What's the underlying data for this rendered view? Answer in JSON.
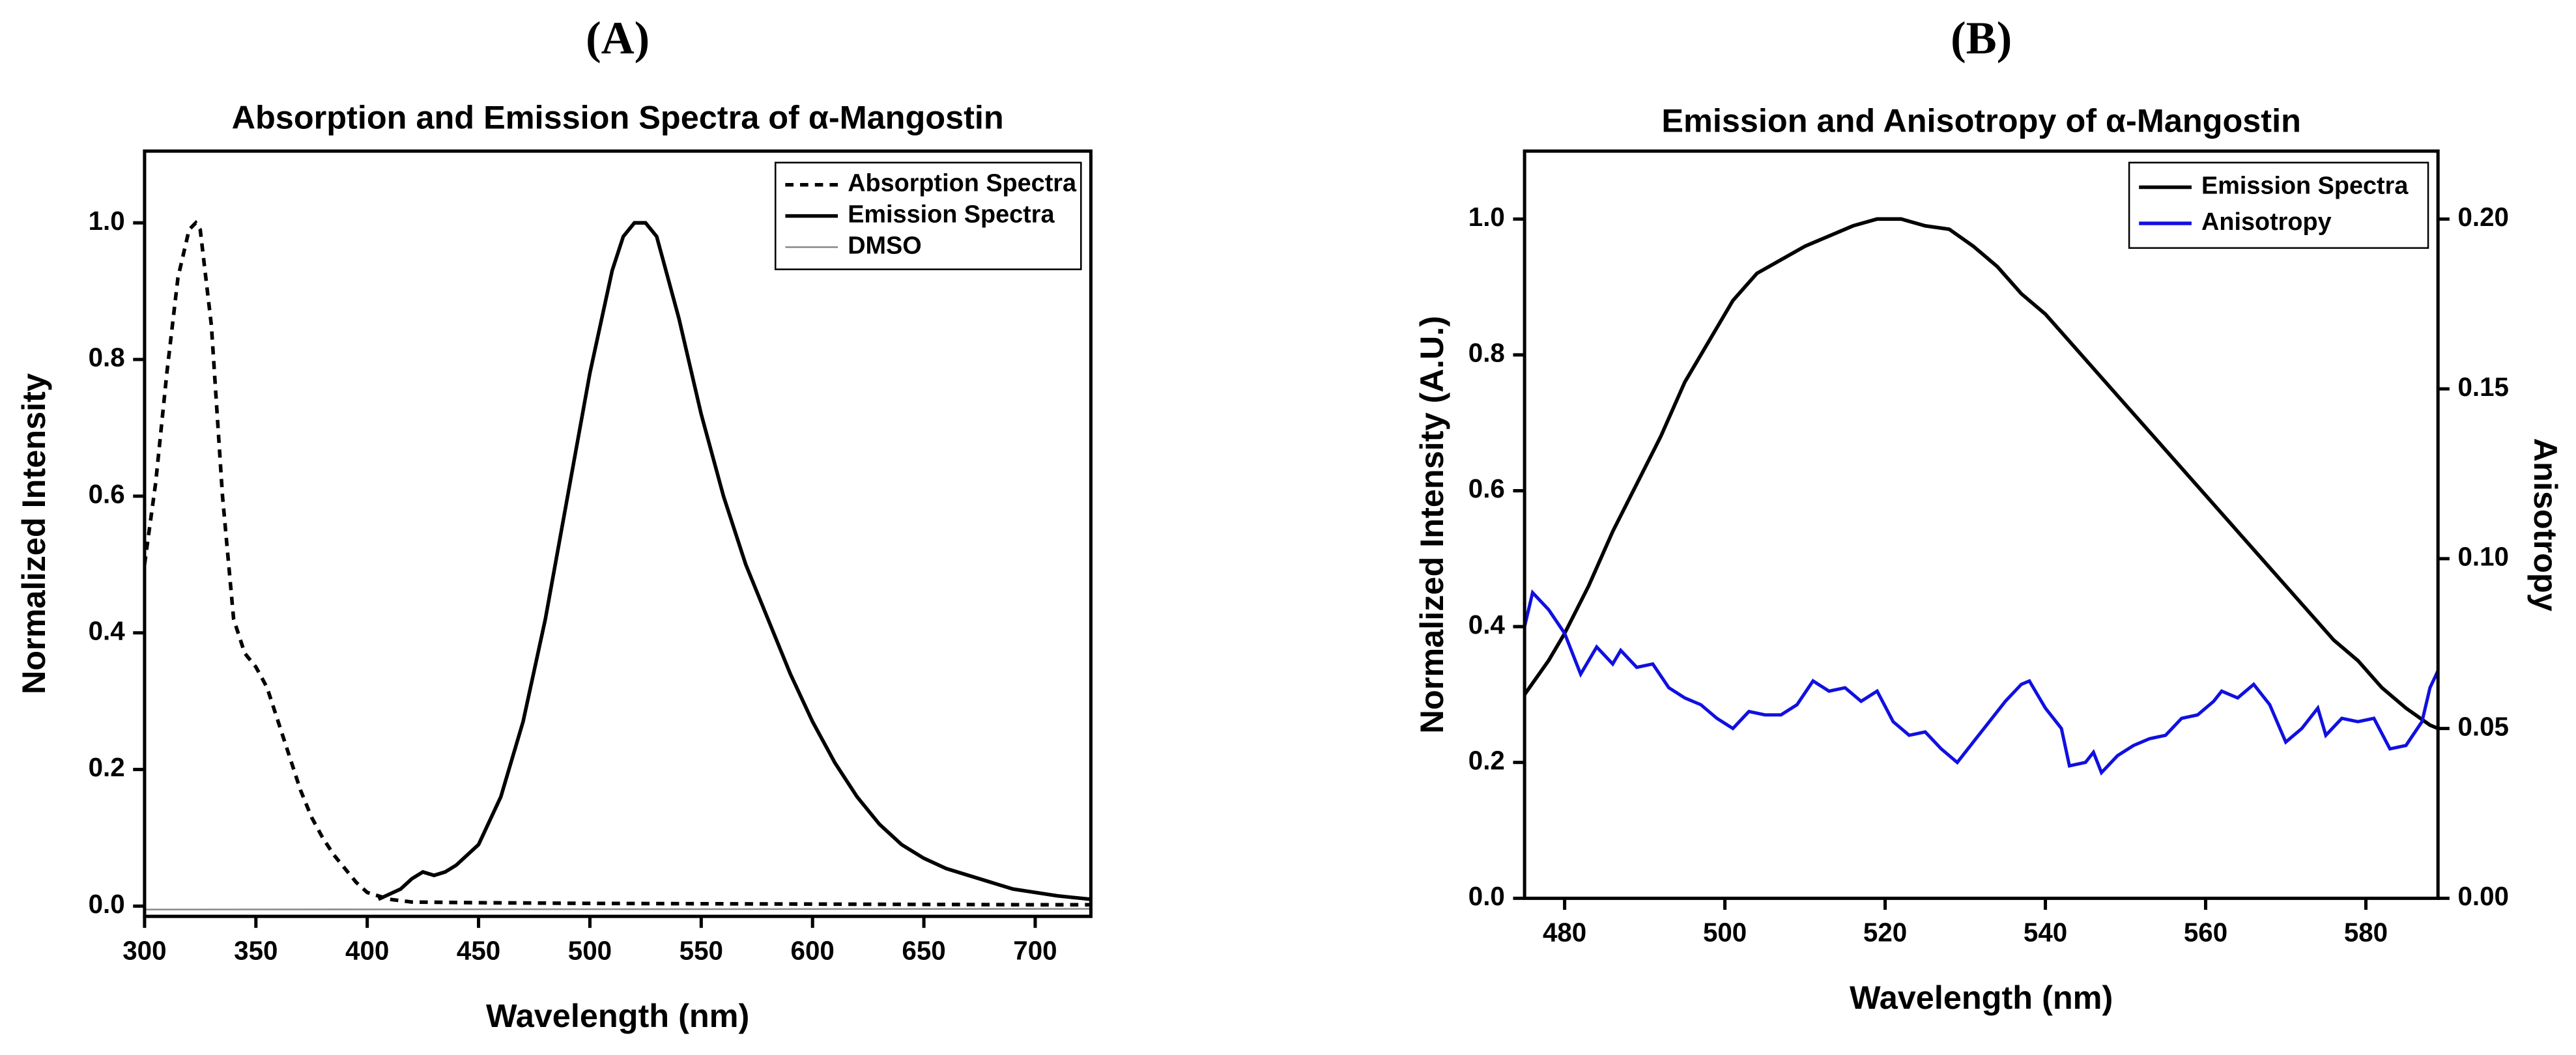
{
  "chart_data": [
    {
      "type": "line",
      "panel_label": "(A)",
      "title": "Absorption and Emission Spectra of α-Mangostin",
      "x_label": "Wavelength (nm)",
      "y_label": "Normalized Intensity",
      "xlim": [
        300,
        725
      ],
      "ylim": [
        -0.015,
        1.105
      ],
      "xticks": [
        300,
        350,
        400,
        450,
        500,
        550,
        600,
        650,
        700
      ],
      "yticks": [
        {
          "value": 0,
          "label": "0.0"
        },
        0.2,
        0.4,
        0.6,
        0.8,
        {
          "value": 1,
          "label": "1.0"
        }
      ],
      "legend": "upper right",
      "series": [
        {
          "name": "Absorption Spectra",
          "color": "#000000",
          "dash": "dashed",
          "x": [
            300,
            305,
            310,
            315,
            320,
            323,
            325,
            330,
            335,
            340,
            345,
            350,
            355,
            360,
            365,
            370,
            375,
            380,
            385,
            390,
            395,
            400,
            410,
            420,
            450,
            500,
            600,
            700,
            725
          ],
          "values": [
            0.5,
            0.62,
            0.78,
            0.92,
            0.99,
            1.0,
            0.99,
            0.85,
            0.6,
            0.42,
            0.37,
            0.35,
            0.32,
            0.27,
            0.22,
            0.17,
            0.13,
            0.1,
            0.075,
            0.055,
            0.035,
            0.02,
            0.01,
            0.006,
            0.005,
            0.004,
            0.003,
            0.002,
            0.002
          ]
        },
        {
          "name": "Emission Spectra",
          "color": "#000000",
          "dash": "solid",
          "x": [
            405,
            415,
            420,
            425,
            430,
            435,
            440,
            450,
            460,
            470,
            480,
            490,
            500,
            510,
            515,
            520,
            525,
            530,
            540,
            550,
            560,
            570,
            580,
            590,
            600,
            610,
            620,
            630,
            640,
            650,
            660,
            670,
            680,
            690,
            700,
            710,
            725
          ],
          "values": [
            0.01,
            0.025,
            0.04,
            0.05,
            0.045,
            0.05,
            0.06,
            0.09,
            0.16,
            0.27,
            0.42,
            0.6,
            0.78,
            0.93,
            0.98,
            1.0,
            1.0,
            0.98,
            0.86,
            0.72,
            0.6,
            0.5,
            0.42,
            0.34,
            0.27,
            0.21,
            0.16,
            0.12,
            0.09,
            0.07,
            0.055,
            0.045,
            0.035,
            0.025,
            0.02,
            0.015,
            0.01
          ]
        },
        {
          "name": "DMSO",
          "color": "#888888",
          "dash": "solid",
          "x": [
            300,
            725
          ],
          "values": [
            -0.005,
            -0.004
          ]
        }
      ]
    },
    {
      "type": "line",
      "panel_label": "(B)",
      "title": "Emission and Anisotropy of α-Mangostin",
      "x_label": "Wavelength (nm)",
      "y_label": "Normalized Intensity (A.U.)",
      "y2_label": "Anisotropy",
      "xlim": [
        475,
        589
      ],
      "ylim": [
        0,
        1.1
      ],
      "y2lim": [
        0,
        0.22
      ],
      "xticks": [
        480,
        500,
        520,
        540,
        560,
        580
      ],
      "yticks": [
        {
          "value": 0,
          "label": "0.0"
        },
        0.2,
        0.4,
        0.6,
        0.8,
        {
          "value": 1,
          "label": "1.0"
        }
      ],
      "y2ticks": [
        {
          "value": 0,
          "label": "0.00"
        },
        0.05,
        {
          "value": 0.1,
          "label": "0.10"
        },
        0.15,
        {
          "value": 0.2,
          "label": "0.20"
        }
      ],
      "legend": "upper right",
      "series": [
        {
          "name": "Emission Spectra",
          "color": "#000000",
          "dash": "solid",
          "x": [
            475,
            478,
            480,
            483,
            486,
            489,
            492,
            495,
            498,
            501,
            504,
            507,
            510,
            513,
            516,
            519,
            522,
            525,
            528,
            531,
            534,
            537,
            540,
            543,
            546,
            549,
            552,
            555,
            558,
            561,
            564,
            567,
            570,
            573,
            576,
            579,
            582,
            585,
            588,
            589
          ],
          "values": [
            0.3,
            0.35,
            0.39,
            0.46,
            0.54,
            0.61,
            0.68,
            0.76,
            0.82,
            0.88,
            0.92,
            0.94,
            0.96,
            0.975,
            0.99,
            1.0,
            1.0,
            0.99,
            0.985,
            0.96,
            0.93,
            0.89,
            0.86,
            0.82,
            0.78,
            0.74,
            0.7,
            0.66,
            0.62,
            0.58,
            0.54,
            0.5,
            0.46,
            0.42,
            0.38,
            0.35,
            0.31,
            0.28,
            0.255,
            0.25
          ]
        },
        {
          "name": "Anisotropy",
          "color": "#1010e0",
          "dash": "solid",
          "axis": "y2",
          "x": [
            475,
            476,
            478,
            480,
            482,
            484,
            486,
            487,
            489,
            491,
            493,
            495,
            497,
            499,
            501,
            503,
            505,
            507,
            509,
            511,
            513,
            515,
            517,
            519,
            521,
            523,
            525,
            527,
            529,
            531,
            533,
            535,
            537,
            538,
            540,
            542,
            543,
            545,
            546,
            547,
            549,
            551,
            553,
            555,
            557,
            559,
            561,
            562,
            564,
            566,
            568,
            570,
            572,
            574,
            575,
            577,
            579,
            581,
            583,
            585,
            587,
            588,
            589
          ],
          "values": [
            0.08,
            0.09,
            0.085,
            0.078,
            0.066,
            0.074,
            0.069,
            0.073,
            0.068,
            0.069,
            0.062,
            0.059,
            0.057,
            0.053,
            0.05,
            0.055,
            0.054,
            0.054,
            0.057,
            0.064,
            0.061,
            0.062,
            0.058,
            0.061,
            0.052,
            0.048,
            0.049,
            0.044,
            0.04,
            0.046,
            0.052,
            0.058,
            0.063,
            0.064,
            0.056,
            0.05,
            0.039,
            0.04,
            0.043,
            0.037,
            0.042,
            0.045,
            0.047,
            0.048,
            0.053,
            0.054,
            0.058,
            0.061,
            0.059,
            0.063,
            0.057,
            0.046,
            0.05,
            0.056,
            0.048,
            0.053,
            0.052,
            0.053,
            0.044,
            0.045,
            0.052,
            0.062,
            0.067
          ]
        }
      ]
    }
  ]
}
